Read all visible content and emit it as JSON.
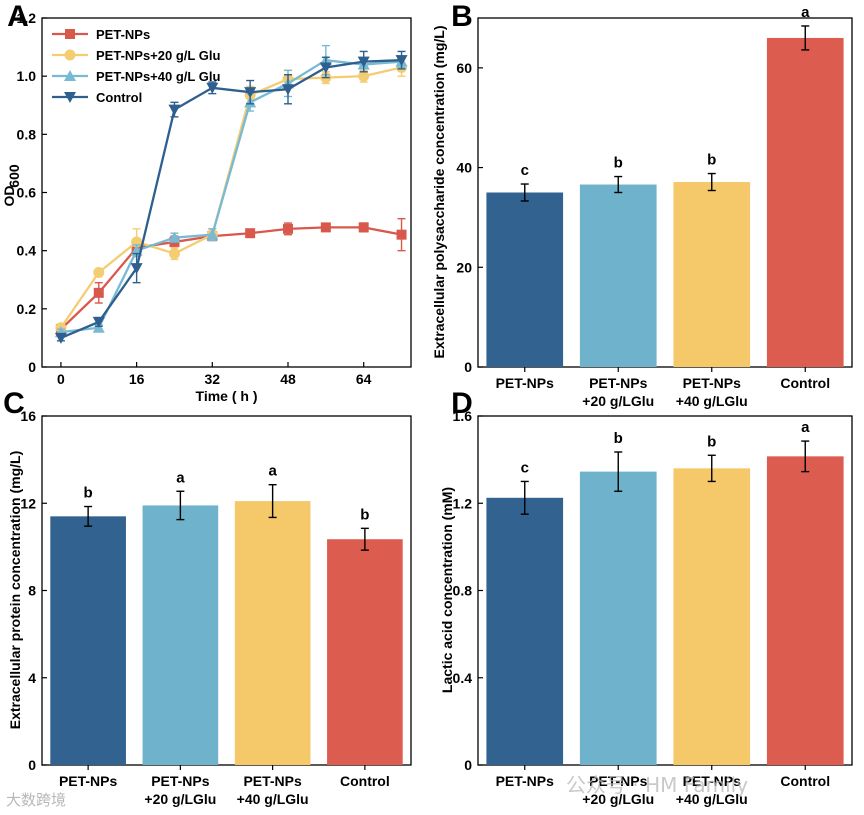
{
  "colors": {
    "dark_blue": "#32628f",
    "light_blue": "#6fb2cc",
    "yellow": "#f5c96a",
    "red": "#dc5d4f",
    "line_red": "#d9584c",
    "line_yellow": "#f4cc72",
    "line_lightblue": "#78b9d3",
    "line_darkblue": "#2f5f8e"
  },
  "watermark": {
    "left": "大数跨境",
    "right": "公众号 · HM Family"
  },
  "chart_data": [
    {
      "panel": "A",
      "type": "line",
      "title": "",
      "xlabel": "Time ( h )",
      "ylabel_main": "OD",
      "ylabel_sub": "600",
      "xlim": [
        -4,
        74
      ],
      "ylim": [
        0,
        1.2
      ],
      "xticks": [
        0,
        16,
        32,
        48,
        64
      ],
      "yticks": [
        0,
        0.2,
        0.4,
        0.6,
        0.8,
        1.0,
        1.2
      ],
      "ytick_labels": [
        "0",
        "0.2",
        "0.4",
        "0.6",
        "0.8",
        "1.0",
        "1.2"
      ],
      "legend_position": "top-left",
      "series": [
        {
          "name": "PET-NPs",
          "marker": "square",
          "color": "#d9584c",
          "x": [
            0,
            8,
            16,
            24,
            32,
            40,
            48,
            56,
            64,
            72
          ],
          "y": [
            0.13,
            0.255,
            0.41,
            0.43,
            0.45,
            0.46,
            0.475,
            0.48,
            0.48,
            0.455
          ],
          "err": [
            0.01,
            0.035,
            0.03,
            0.02,
            0.015,
            0.012,
            0.02,
            0.012,
            0.015,
            0.055
          ]
        },
        {
          "name": "PET-NPs+20 g/L Glu",
          "marker": "circle",
          "color": "#f4cc72",
          "x": [
            0,
            8,
            16,
            24,
            32,
            40,
            48,
            56,
            64,
            72
          ],
          "y": [
            0.135,
            0.325,
            0.43,
            0.39,
            0.455,
            0.935,
            0.99,
            0.995,
            1.0,
            1.03
          ],
          "err": [
            0.01,
            0.01,
            0.045,
            0.02,
            0.02,
            0.03,
            0.03,
            0.02,
            0.02,
            0.03
          ]
        },
        {
          "name": "PET-NPs+40 g/L Glu",
          "marker": "triangle-up",
          "color": "#78b9d3",
          "x": [
            0,
            8,
            16,
            24,
            32,
            40,
            48,
            56,
            64,
            72
          ],
          "y": [
            0.12,
            0.135,
            0.4,
            0.445,
            0.455,
            0.91,
            0.975,
            1.055,
            1.04,
            1.05
          ],
          "err": [
            0.01,
            0.01,
            0.02,
            0.015,
            0.02,
            0.03,
            0.045,
            0.05,
            0.025,
            0.02
          ]
        },
        {
          "name": "Control",
          "marker": "triangle-down",
          "color": "#2f5f8e",
          "x": [
            0,
            8,
            16,
            24,
            32,
            40,
            48,
            56,
            64,
            72
          ],
          "y": [
            0.1,
            0.155,
            0.34,
            0.885,
            0.96,
            0.945,
            0.955,
            1.03,
            1.05,
            1.055
          ],
          "err": [
            0.01,
            0.015,
            0.05,
            0.025,
            0.02,
            0.04,
            0.05,
            0.035,
            0.035,
            0.03
          ]
        }
      ]
    },
    {
      "panel": "B",
      "type": "bar",
      "ylabel": "Extracellular polysaccharide concentration (mg/L)",
      "ylim": [
        0,
        70
      ],
      "yticks": [
        0,
        20,
        40,
        60
      ],
      "categories": [
        [
          "PET-NPs"
        ],
        [
          "PET-NPs",
          "+20 g/LGlu"
        ],
        [
          "PET-NPs",
          "+40 g/LGlu"
        ],
        [
          "Control"
        ]
      ],
      "values": [
        35.0,
        36.6,
        37.1,
        66.0
      ],
      "errors": [
        1.7,
        1.6,
        1.7,
        2.4
      ],
      "significance": [
        "c",
        "b",
        "b",
        "a"
      ]
    },
    {
      "panel": "C",
      "type": "bar",
      "ylabel": "Extracellular protein concentration (mg/L)",
      "ylim": [
        0,
        16
      ],
      "yticks": [
        0,
        4,
        8,
        12,
        16
      ],
      "categories": [
        [
          "PET-NPs"
        ],
        [
          "PET-NPs",
          "+20 g/LGlu"
        ],
        [
          "PET-NPs",
          "+40 g/LGlu"
        ],
        [
          "Control"
        ]
      ],
      "values": [
        11.4,
        11.9,
        12.1,
        10.35
      ],
      "errors": [
        0.45,
        0.65,
        0.75,
        0.5
      ],
      "significance": [
        "b",
        "a",
        "a",
        "b"
      ]
    },
    {
      "panel": "D",
      "type": "bar",
      "ylabel": "Lactic acid concentration (mM)",
      "ylim": [
        0,
        1.6
      ],
      "yticks": [
        0,
        0.4,
        0.8,
        1.2,
        1.6
      ],
      "categories": [
        [
          "PET-NPs"
        ],
        [
          "PET-NPs",
          "+20 g/LGlu"
        ],
        [
          "PET-NPs",
          "+40 g/LGlu"
        ],
        [
          "Control"
        ]
      ],
      "values": [
        1.225,
        1.345,
        1.36,
        1.415
      ],
      "errors": [
        0.075,
        0.09,
        0.06,
        0.07
      ],
      "significance": [
        "c",
        "b",
        "b",
        "a"
      ]
    }
  ]
}
